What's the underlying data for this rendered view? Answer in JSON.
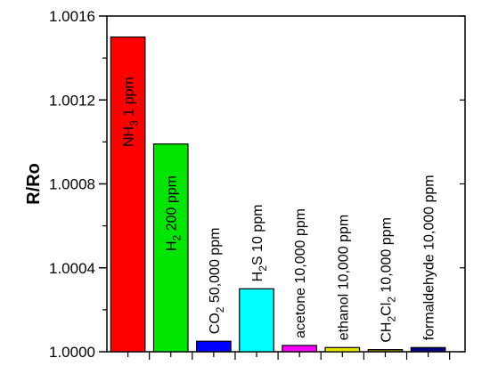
{
  "chart_data": {
    "type": "bar",
    "title": "",
    "xlabel": "",
    "ylabel": "R/Ro",
    "ylim": [
      1.0,
      1.0016
    ],
    "yticks": [
      1.0,
      1.0004,
      1.0008,
      1.0012,
      1.0016
    ],
    "ytick_labels": [
      "1.0000",
      "1.0004",
      "1.0008",
      "1.0012",
      "1.0016"
    ],
    "grid": false,
    "categories": [
      {
        "label_parts": [
          {
            "t": "NH"
          },
          {
            "t": "3",
            "sub": true
          },
          {
            "t": "  1 ppm"
          }
        ],
        "plain": "NH3  1 ppm",
        "value": 1.0015,
        "color": "#ff0000"
      },
      {
        "label_parts": [
          {
            "t": "H"
          },
          {
            "t": "2",
            "sub": true
          },
          {
            "t": " 200 ppm"
          }
        ],
        "plain": "H2 200 ppm",
        "value": 1.00099,
        "color": "#00e600"
      },
      {
        "label_parts": [
          {
            "t": "CO"
          },
          {
            "t": "2",
            "sub": true
          },
          {
            "t": "  50,000 ppm"
          }
        ],
        "plain": "CO2  50,000 ppm",
        "value": 1.00005,
        "color": "#0000ff"
      },
      {
        "label_parts": [
          {
            "t": "H"
          },
          {
            "t": "2",
            "sub": true
          },
          {
            "t": "S  10 ppm"
          }
        ],
        "plain": "H2S  10 ppm",
        "value": 1.0003,
        "color": "#00ffff"
      },
      {
        "label_parts": [
          {
            "t": "acetone  10,000 ppm"
          }
        ],
        "plain": "acetone  10,000 ppm",
        "value": 1.00003,
        "color": "#ff00ff"
      },
      {
        "label_parts": [
          {
            "t": "ethanol  10,000 ppm"
          }
        ],
        "plain": "ethanol  10,000 ppm",
        "value": 1.00002,
        "color": "#e6e600"
      },
      {
        "label_parts": [
          {
            "t": "CH"
          },
          {
            "t": "2",
            "sub": true
          },
          {
            "t": "Cl"
          },
          {
            "t": "2",
            "sub": true
          },
          {
            "t": "  10,000 ppm"
          }
        ],
        "plain": "CH2Cl2  10,000 ppm",
        "value": 1.00001,
        "color": "#808000"
      },
      {
        "label_parts": [
          {
            "t": "formaldehyde 10,000 ppm"
          }
        ],
        "plain": "formaldehyde 10,000 ppm",
        "value": 1.00002,
        "color": "#000080"
      }
    ]
  }
}
